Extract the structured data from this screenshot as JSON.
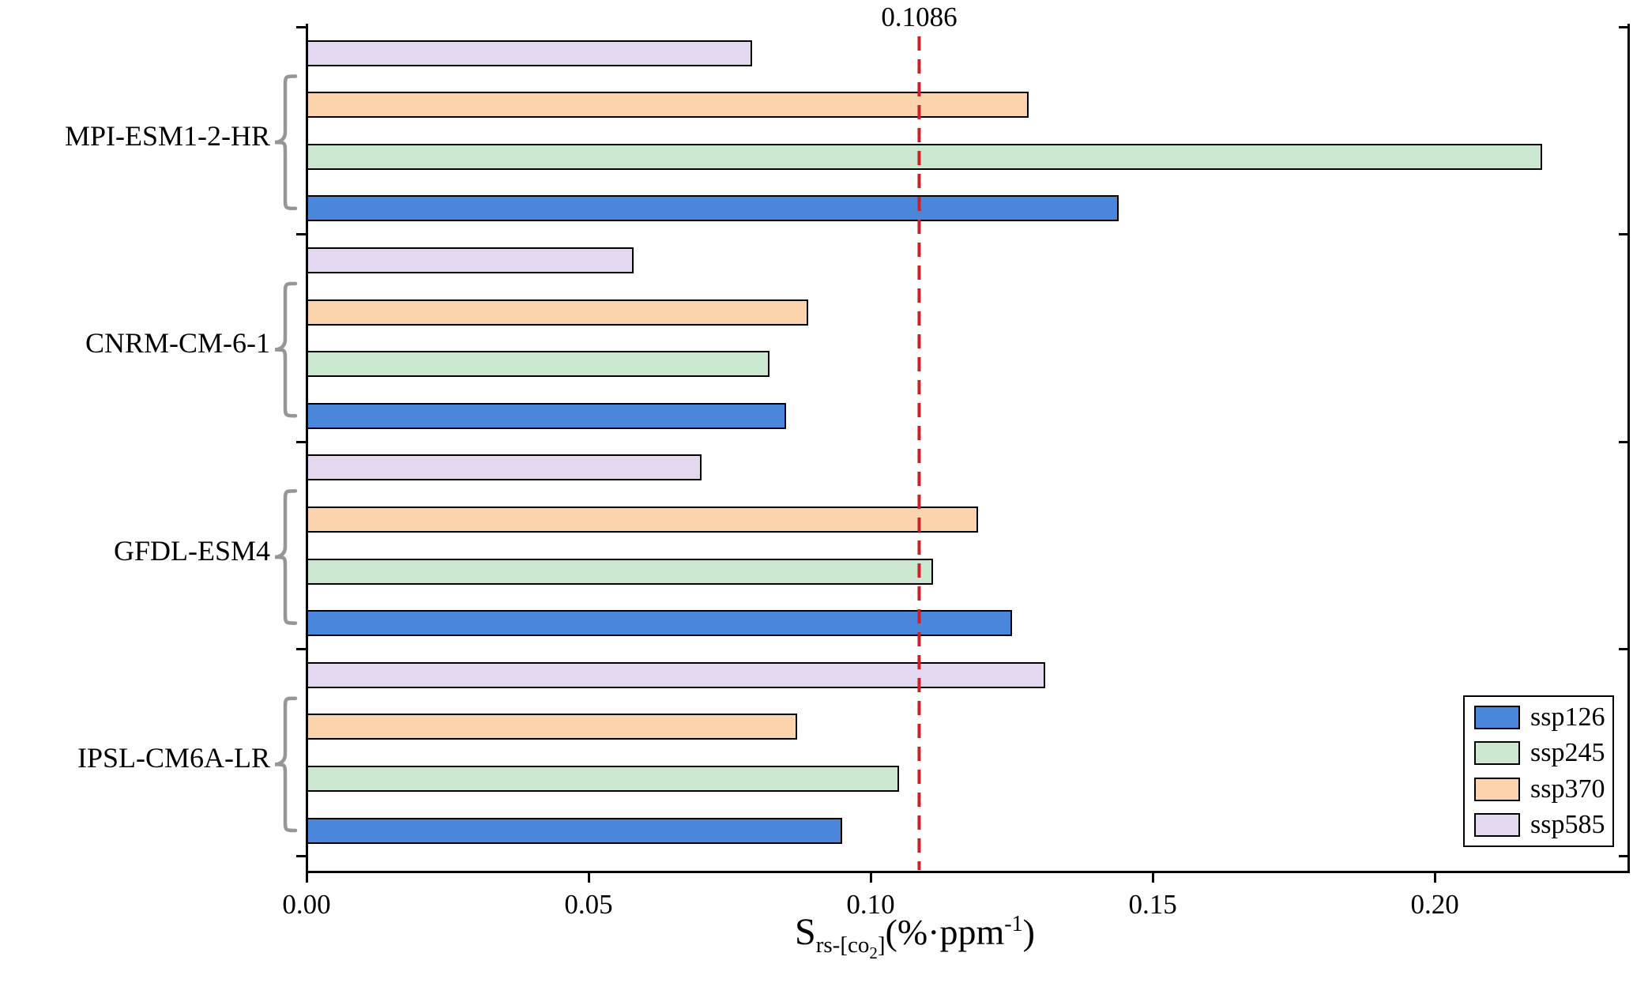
{
  "chart_data": {
    "type": "bar",
    "orientation": "horizontal",
    "categories": [
      "MPI-ESM1-2-HR",
      "CNRM-CM-6-1",
      "GFDL-ESM4",
      "IPSL-CM6A-LR"
    ],
    "bar_order_top_to_bottom": [
      "ssp585",
      "ssp370",
      "ssp245",
      "ssp126"
    ],
    "series": [
      {
        "name": "ssp126",
        "color": "#4a86d9",
        "values": [
          0.144,
          0.085,
          0.125,
          0.095
        ]
      },
      {
        "name": "ssp245",
        "color": "#cbe7cf",
        "values": [
          0.219,
          0.082,
          0.111,
          0.105
        ]
      },
      {
        "name": "ssp370",
        "color": "#fbd3ac",
        "values": [
          0.128,
          0.089,
          0.119,
          0.087
        ]
      },
      {
        "name": "ssp585",
        "color": "#e4d7f0",
        "values": [
          0.079,
          0.058,
          0.07,
          0.131
        ]
      }
    ],
    "reference_line": {
      "value": 0.1086,
      "label": "0.1086",
      "color": "#cb2027",
      "style": "dashed"
    },
    "x_ticks": [
      {
        "value": 0,
        "label": "0.00"
      },
      {
        "value": 0.05,
        "label": "0.05"
      },
      {
        "value": 0.1,
        "label": "0.10"
      },
      {
        "value": 0.15,
        "label": "0.15"
      },
      {
        "value": 0.2,
        "label": "0.20"
      }
    ],
    "xlim": [
      0,
      0.2343
    ],
    "grid": false,
    "xlabel_text": "S rs-[co2] (%·ppm -1)",
    "xlabel_parts": {
      "base": "S",
      "sub_a": "rs-[co",
      "sub_digit": "2",
      "sub_b": "]",
      "unit_open": "(%·ppm",
      "exp": "-1",
      "unit_close": ")"
    },
    "legend": {
      "position": "bottom-right",
      "entries": [
        "ssp126",
        "ssp245",
        "ssp370",
        "ssp585"
      ]
    },
    "axis_color": "#000000",
    "brace_color": "#969696"
  }
}
